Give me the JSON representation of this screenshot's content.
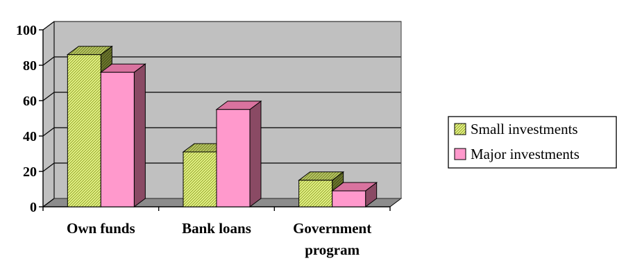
{
  "chart_data": {
    "type": "bar",
    "title": "",
    "xlabel": "",
    "ylabel": "",
    "categories": [
      [
        "Own funds"
      ],
      [
        "Bank loans"
      ],
      [
        "Government",
        "program"
      ]
    ],
    "series": [
      {
        "name": "Small investments",
        "values": [
          86,
          31,
          15
        ],
        "color": "#e6f58a",
        "pattern": "diagonal-hatch"
      },
      {
        "name": "Major investments",
        "values": [
          76,
          55,
          9
        ],
        "color": "#ff99cc"
      }
    ],
    "ylim": [
      0,
      100
    ],
    "yticks": [
      0,
      20,
      40,
      60,
      80,
      100
    ],
    "grid": true,
    "legend": "right",
    "style": "3d-clustered-column",
    "plot_background": "#c0c0c0"
  }
}
